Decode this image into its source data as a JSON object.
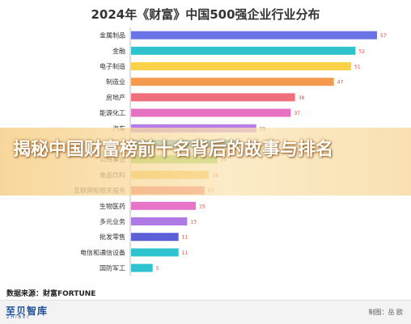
{
  "chart_data": {
    "type": "bar",
    "orientation": "horizontal",
    "title": "2024年《财富》中国500强企业行业分布",
    "categories": [
      "金属制品",
      "金融",
      "电子制造",
      "制造业",
      "房地产",
      "能源化工",
      "汽车",
      "",
      "公用事业",
      "食品饮料",
      "互联网和相关服务",
      "生物医药",
      "多元业务",
      "批发零售",
      "电信和通信设备",
      "国防军工"
    ],
    "values": [
      57,
      52,
      51,
      47,
      38,
      37,
      29,
      25,
      20,
      18,
      17,
      15,
      13,
      11,
      11,
      5
    ],
    "colors": [
      "#6a73e6",
      "#2fc4cd",
      "#f9d247",
      "#f39a4e",
      "#ef6f7d",
      "#e670c2",
      "#b57de6",
      "#4fb6e6",
      "#8ad04f",
      "#f4c441",
      "#f06a6a",
      "#e874c7",
      "#b07ae6",
      "#5b5fd8",
      "#2ec4cf",
      "#2ec4cf"
    ],
    "source": "数据来源：财富FORTUNE"
  },
  "footer": {
    "logo": "至贝智库",
    "logo_sub": "ZHIBEI",
    "credit": "制图：岳 欧"
  },
  "overlay": {
    "headline": "揭秘中国财富榜前十名背后的故事与排名"
  }
}
